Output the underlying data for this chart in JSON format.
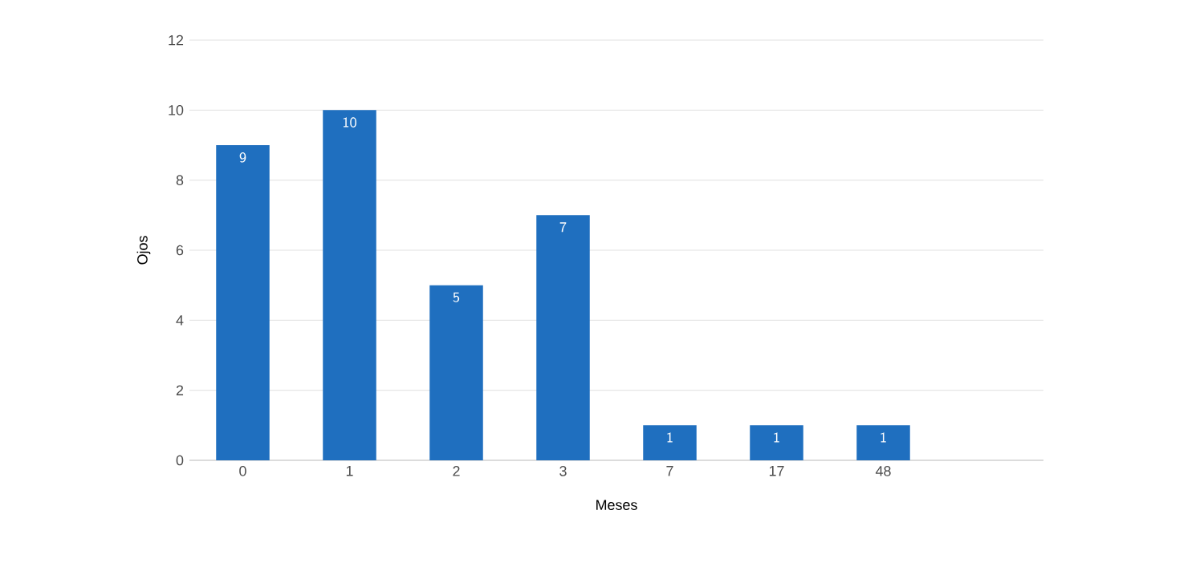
{
  "chart_data": {
    "type": "bar",
    "xlabel": "Meses",
    "ylabel": "Ojos",
    "categories": [
      "0",
      "1",
      "2",
      "3",
      "7",
      "17",
      "48",
      null
    ],
    "values": [
      9,
      10,
      5,
      7,
      1,
      1,
      1,
      null
    ],
    "color": "#1f6fbf",
    "ylim": [
      0,
      12
    ],
    "yticks": [
      0,
      2,
      4,
      6,
      8,
      10,
      12
    ],
    "grid": "y",
    "data_labels": true
  }
}
